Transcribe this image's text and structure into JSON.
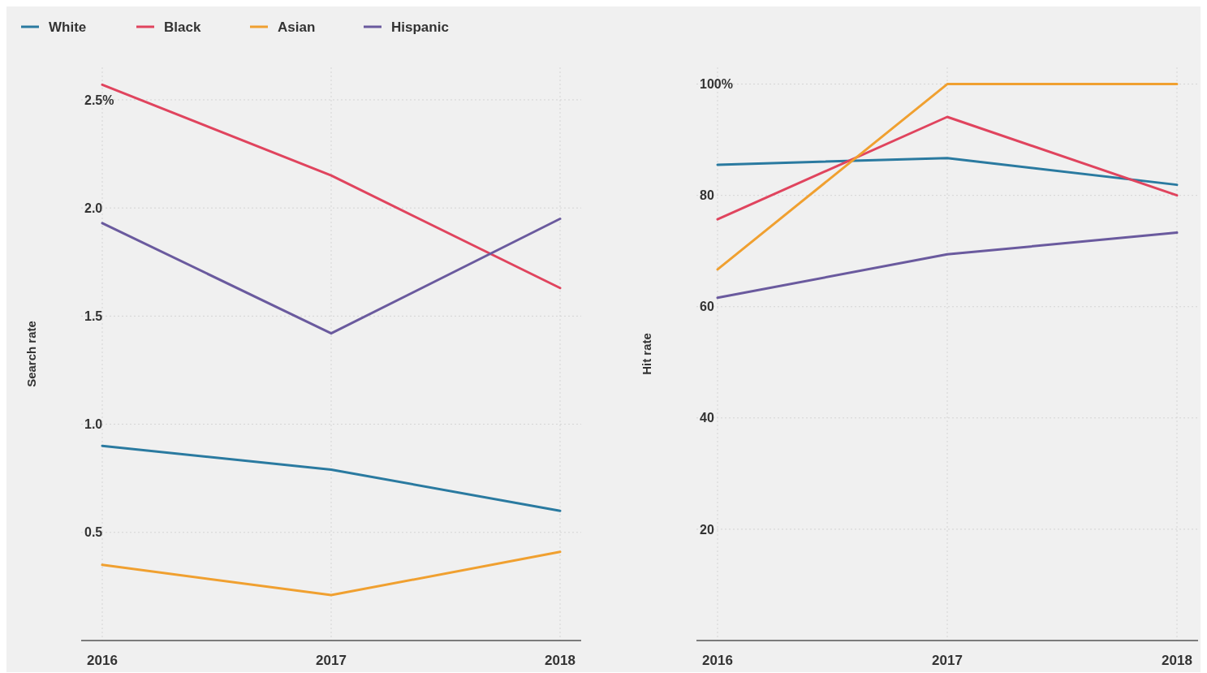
{
  "chart_data": [
    {
      "type": "line",
      "ylabel": "Search rate",
      "categories": [
        "2016",
        "2017",
        "2018"
      ],
      "ylim": [
        0,
        2.65
      ],
      "yticks": [
        0.5,
        {
          "value": 1.0,
          "label": "1.0"
        },
        1.5,
        {
          "value": 2.0,
          "label": "2.0"
        },
        {
          "value": 2.5,
          "label": "2.5%"
        }
      ],
      "grid": true,
      "legend": "top left",
      "marker": "none",
      "line_style": "solid",
      "series": [
        {
          "name": "White",
          "color": "#2a7aa0",
          "values": [
            0.9,
            0.79,
            0.6
          ]
        },
        {
          "name": "Black",
          "color": "#e0445e",
          "values": [
            2.57,
            2.15,
            1.63
          ]
        },
        {
          "name": "Asian",
          "color": "#f0a030",
          "values": [
            0.35,
            0.21,
            0.41
          ]
        },
        {
          "name": "Hispanic",
          "color": "#6a5a9e",
          "values": [
            1.93,
            1.42,
            1.95
          ]
        }
      ]
    },
    {
      "type": "line",
      "ylabel": "Hit rate",
      "categories": [
        "2016",
        "2017",
        "2018"
      ],
      "ylim": [
        0,
        103
      ],
      "yticks": [
        20,
        40,
        60,
        80,
        {
          "value": 100,
          "label": "100%"
        }
      ],
      "grid": true,
      "legend": false,
      "marker": "none",
      "line_style": "solid",
      "series": [
        {
          "color": "#2a7aa0",
          "values": [
            85.5,
            86.7,
            81.9
          ]
        },
        {
          "color": "#e0445e",
          "values": [
            75.7,
            94.1,
            80
          ]
        },
        {
          "color": "#f0a030",
          "values": [
            66.7,
            100,
            100
          ]
        },
        {
          "color": "#6a5a9e",
          "values": [
            61.6,
            69.4,
            73.3
          ]
        }
      ]
    }
  ]
}
